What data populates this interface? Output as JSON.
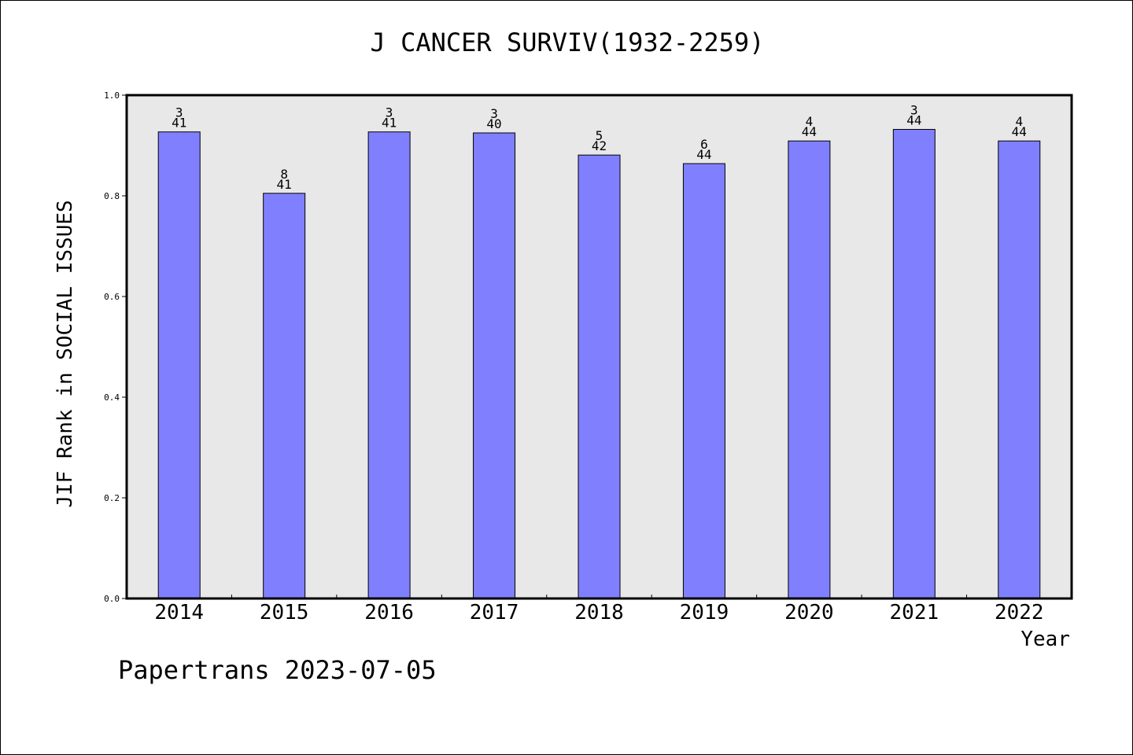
{
  "chart_data": {
    "type": "bar",
    "title": "J CANCER SURVIV(1932-2259)",
    "xlabel": "Year",
    "ylabel": "JIF Rank in SOCIAL ISSUES",
    "ylim": [
      0,
      1.0
    ],
    "yticks": [
      "0.0",
      "0.2",
      "0.4",
      "0.6",
      "0.8",
      "1.0"
    ],
    "grid": false,
    "categories": [
      "2014",
      "2015",
      "2016",
      "2017",
      "2018",
      "2019",
      "2020",
      "2021",
      "2022"
    ],
    "values": [
      0.927,
      0.805,
      0.927,
      0.925,
      0.881,
      0.864,
      0.909,
      0.932,
      0.909
    ],
    "label_top": [
      "3",
      "8",
      "3",
      "3",
      "5",
      "6",
      "4",
      "3",
      "4"
    ],
    "label_bottom": [
      "41",
      "41",
      "41",
      "40",
      "42",
      "44",
      "44",
      "44",
      "44"
    ],
    "colors": {
      "bar": "#8080ff",
      "plot_bg": "#e8e8e8"
    }
  },
  "footer": "Papertrans 2023-07-05"
}
